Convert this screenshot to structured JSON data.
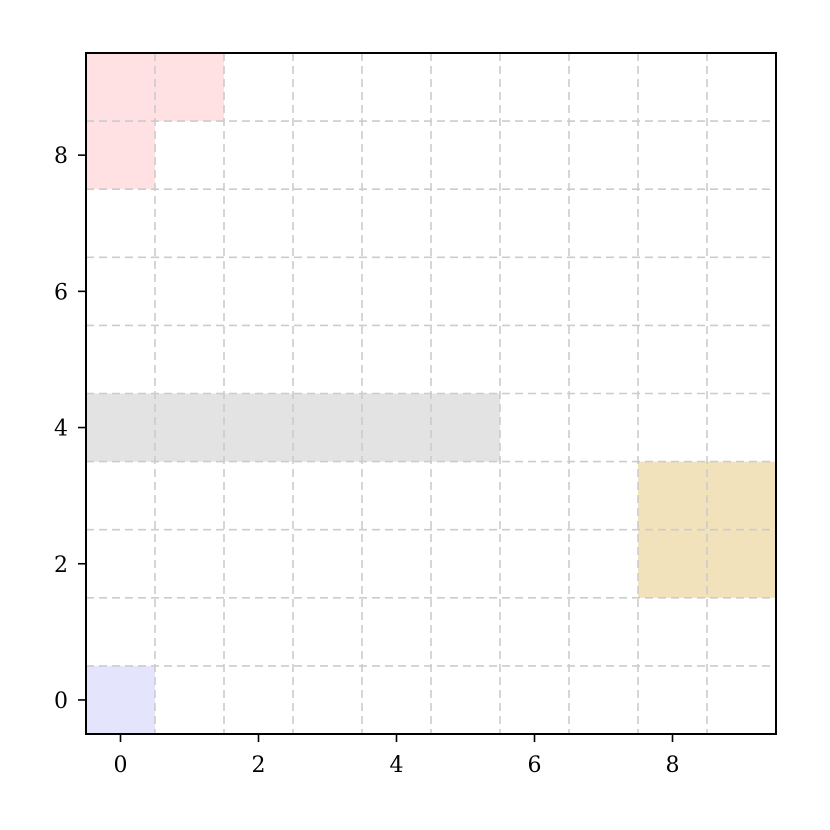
{
  "chart_data": {
    "type": "heatmap",
    "title": "",
    "xlabel": "",
    "ylabel": "",
    "xlim": [
      -0.5,
      9.5
    ],
    "ylim": [
      -0.5,
      9.5
    ],
    "grid": true,
    "grid_spacing": 1,
    "grid_offset": 0.5,
    "x_ticks": [
      0,
      2,
      4,
      6,
      8
    ],
    "y_ticks": [
      0,
      2,
      4,
      6,
      8
    ],
    "x_tick_labels": [
      "0",
      "2",
      "4",
      "6",
      "8"
    ],
    "y_tick_labels": [
      "0",
      "2",
      "4",
      "6",
      "8"
    ],
    "regions": [
      {
        "id": "pink-top",
        "color": "#ffe0e3",
        "cells": [
          [
            0,
            9
          ],
          [
            1,
            9
          ],
          [
            0,
            8
          ]
        ]
      },
      {
        "id": "gray-row",
        "color": "#e3e3e3",
        "cells": [
          [
            0,
            4
          ],
          [
            1,
            4
          ],
          [
            2,
            4
          ],
          [
            3,
            4
          ],
          [
            4,
            4
          ],
          [
            5,
            4
          ]
        ]
      },
      {
        "id": "tan-block",
        "color": "#f2e2bb",
        "cells": [
          [
            8,
            3
          ],
          [
            9,
            3
          ],
          [
            8,
            2
          ],
          [
            9,
            2
          ]
        ]
      },
      {
        "id": "blue-corner",
        "color": "#e4e4fd",
        "cells": [
          [
            0,
            0
          ]
        ]
      }
    ]
  }
}
